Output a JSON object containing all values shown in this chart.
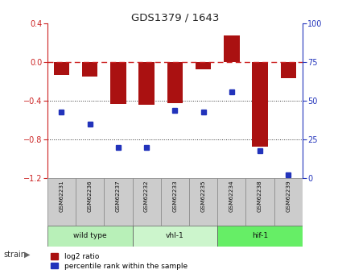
{
  "title": "GDS1379 / 1643",
  "samples": [
    "GSM62231",
    "GSM62236",
    "GSM62237",
    "GSM62232",
    "GSM62233",
    "GSM62235",
    "GSM62234",
    "GSM62238",
    "GSM62239"
  ],
  "log2_ratio": [
    -0.13,
    -0.15,
    -0.43,
    -0.44,
    -0.42,
    -0.07,
    0.28,
    -0.87,
    -0.16
  ],
  "percentile": [
    43,
    35,
    20,
    20,
    44,
    43,
    56,
    18,
    2
  ],
  "ylim_left": [
    -1.2,
    0.4
  ],
  "ylim_right": [
    0,
    100
  ],
  "yticks_left": [
    0.4,
    0.0,
    -0.4,
    -0.8,
    -1.2
  ],
  "yticks_right": [
    100,
    75,
    50,
    25,
    0
  ],
  "groups": [
    {
      "label": "wild type",
      "start": 0,
      "end": 3,
      "color": "#b8f0b8"
    },
    {
      "label": "vhl-1",
      "start": 3,
      "end": 6,
      "color": "#ccf5cc"
    },
    {
      "label": "hif-1",
      "start": 6,
      "end": 9,
      "color": "#66ee66"
    }
  ],
  "bar_color": "#aa1111",
  "dot_color": "#2233bb",
  "hline_color": "#cc2222",
  "bg_color": "#ffffff",
  "label_log2": "log2 ratio",
  "label_pct": "percentile rank within the sample",
  "strain_label": "strain"
}
